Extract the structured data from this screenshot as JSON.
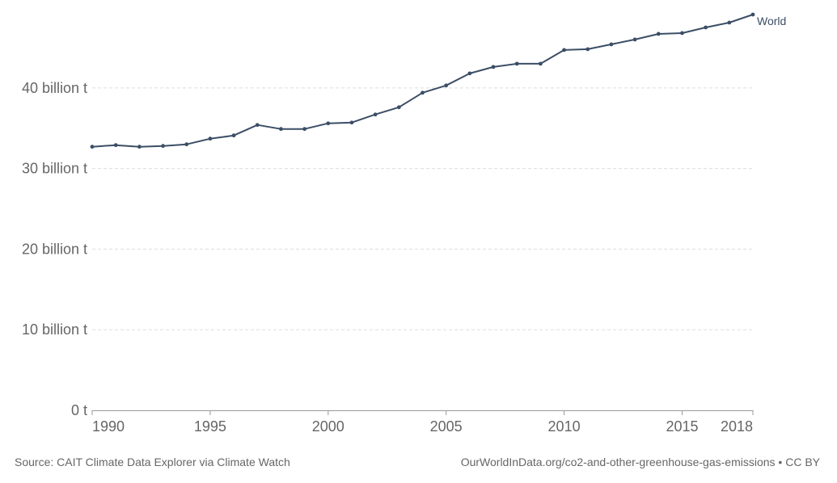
{
  "chart_data": {
    "type": "line",
    "title": "",
    "xlabel": "",
    "ylabel": "",
    "x": [
      1990,
      1991,
      1992,
      1993,
      1994,
      1995,
      1996,
      1997,
      1998,
      1999,
      2000,
      2001,
      2002,
      2003,
      2004,
      2005,
      2006,
      2007,
      2008,
      2009,
      2010,
      2011,
      2012,
      2013,
      2014,
      2015,
      2016,
      2017,
      2018
    ],
    "series": [
      {
        "name": "World",
        "color": "#3c4e66",
        "values": [
          32.7,
          32.9,
          32.7,
          32.8,
          33.0,
          33.7,
          34.1,
          35.4,
          34.9,
          34.9,
          35.6,
          35.7,
          36.7,
          37.6,
          39.4,
          40.3,
          41.8,
          42.6,
          43.0,
          43.0,
          44.7,
          44.8,
          45.4,
          46.0,
          46.7,
          46.8,
          47.5,
          48.1,
          49.1
        ]
      }
    ],
    "xlim": [
      1990,
      2018
    ],
    "ylim": [
      0,
      49.1
    ],
    "x_ticks": [
      1990,
      1995,
      2000,
      2005,
      2010,
      2015,
      2018
    ],
    "x_tick_labels": [
      "1990",
      "1995",
      "2000",
      "2005",
      "2010",
      "2015",
      "2018"
    ],
    "y_ticks": [
      0,
      10,
      20,
      30,
      40
    ],
    "y_tick_labels": [
      "0 t",
      "10 billion t",
      "20 billion t",
      "30 billion t",
      "40 billion t"
    ],
    "grid": "horizontal-dashed",
    "legend": "end-of-line label"
  },
  "footer": {
    "source": "Source: CAIT Climate Data Explorer via Climate Watch",
    "url": "OurWorldInData.org/co2-and-other-greenhouse-gas-emissions • CC BY"
  }
}
